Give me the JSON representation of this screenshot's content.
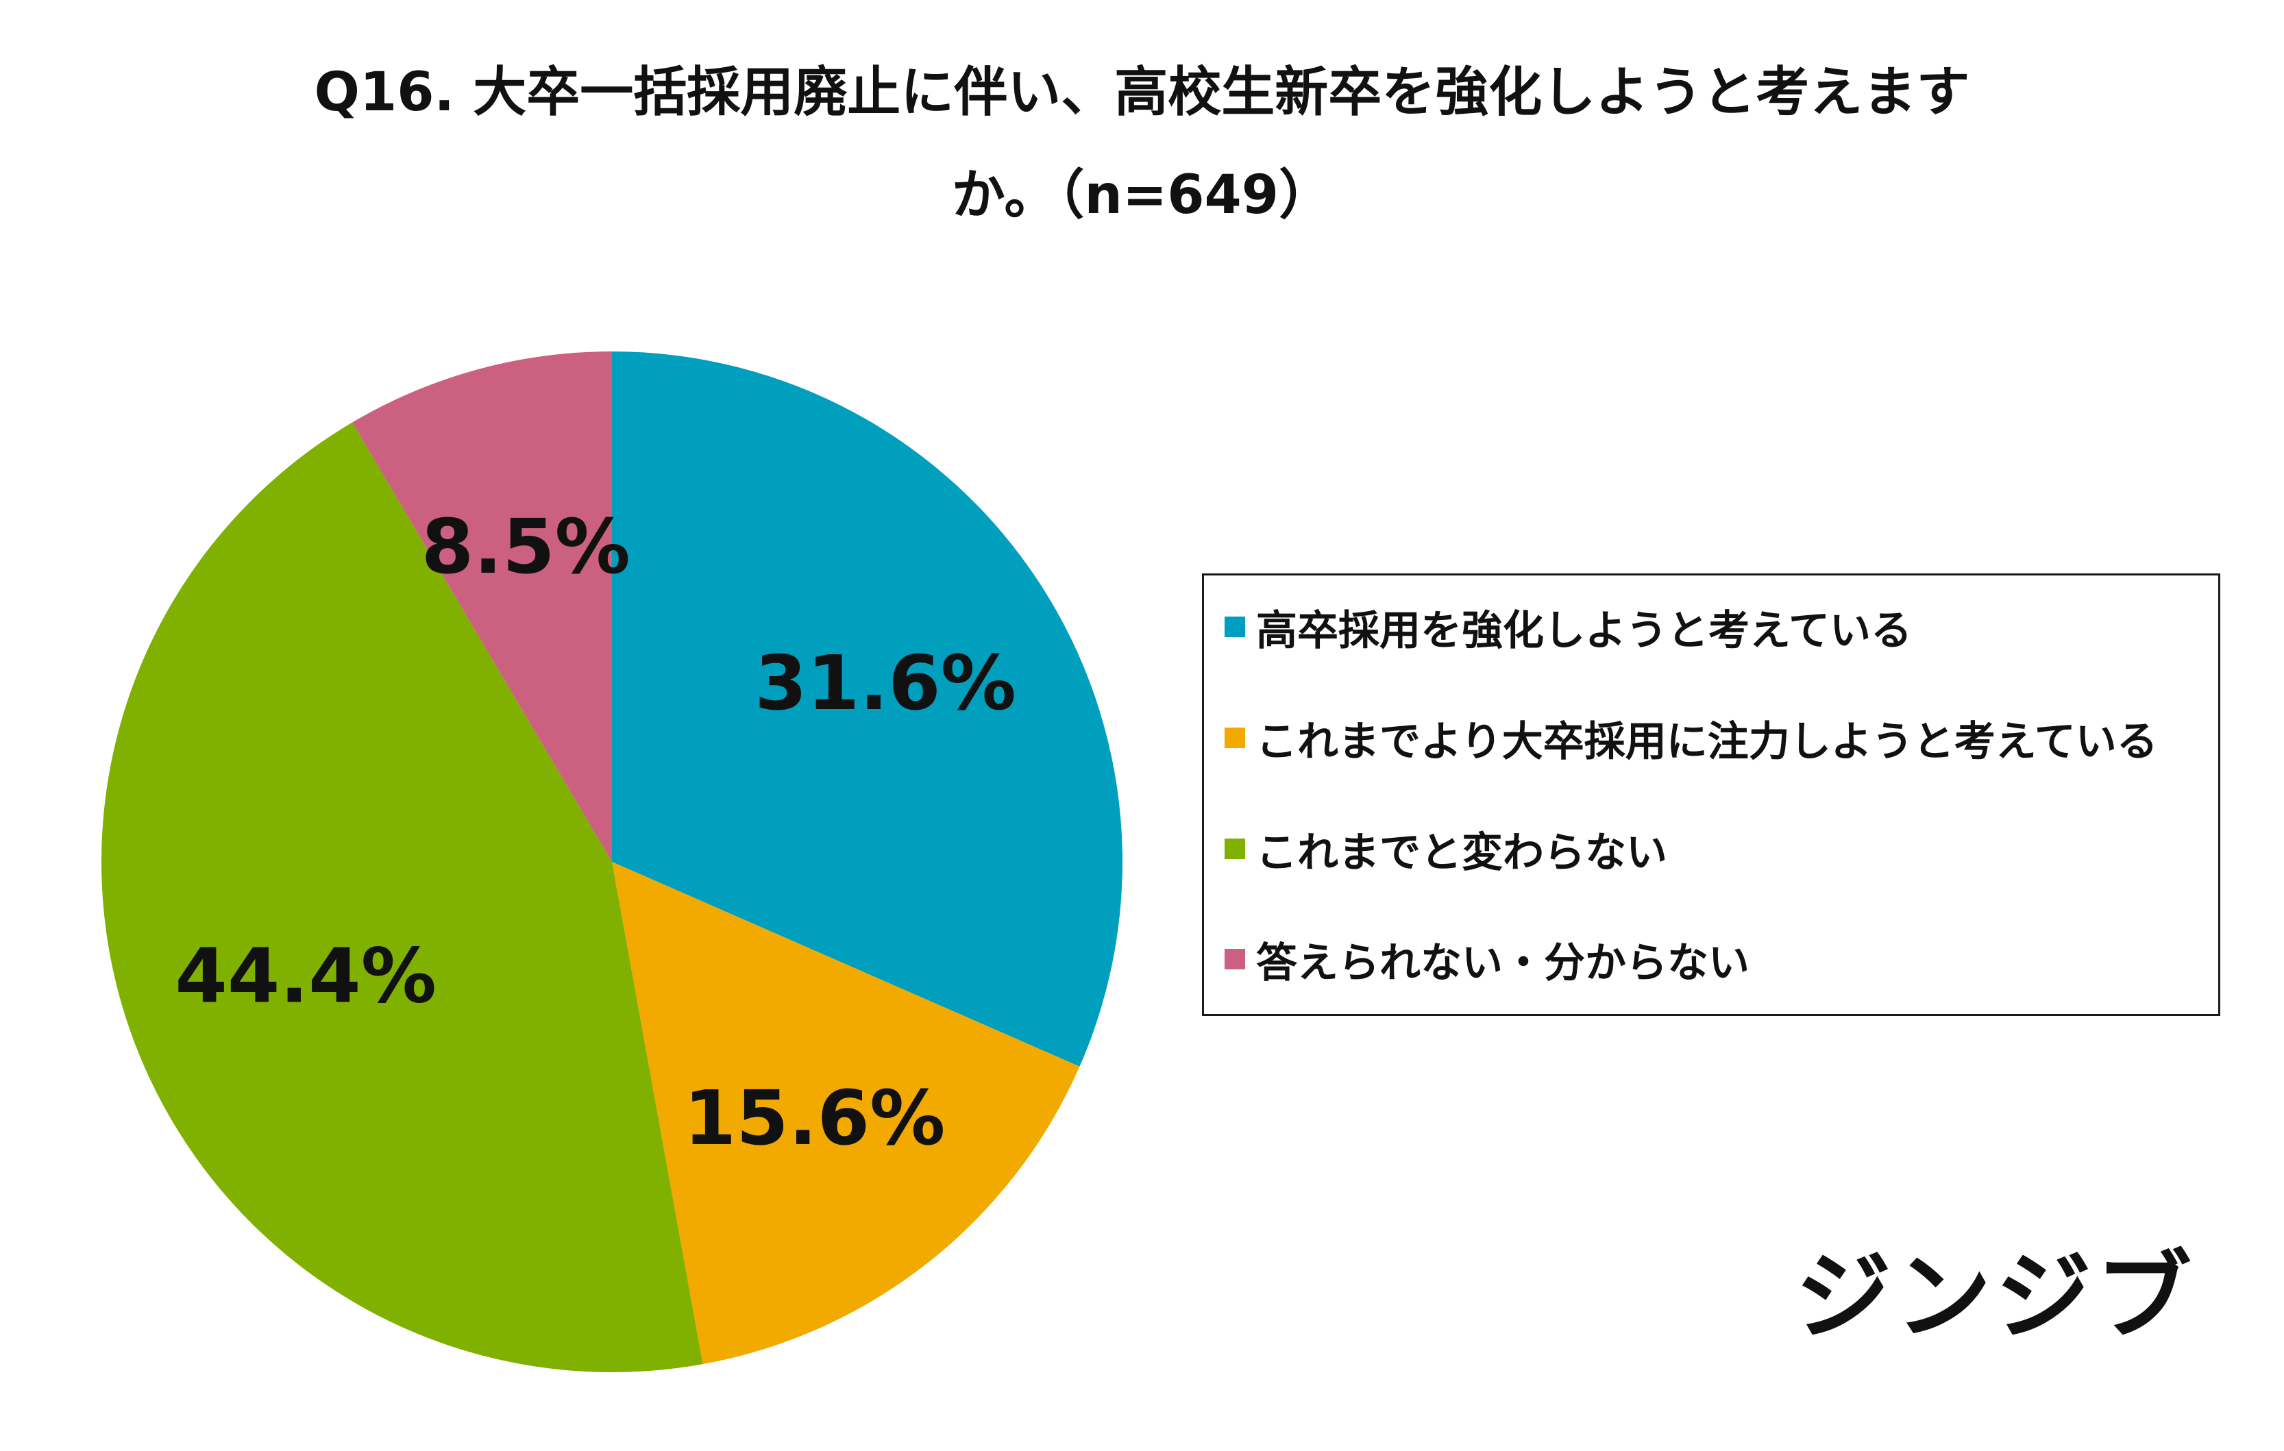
{
  "title": {
    "line1": "Q16. 大卒一括採用廃止に伴い、高校生新卒を強化しようと考えます",
    "line2": "か。（n=649）"
  },
  "chart_data": {
    "type": "pie",
    "start_angle_deg": 0,
    "direction": "clockwise",
    "slices": [
      {
        "label": "高卒採用を強化しようと考えている",
        "value": 31.6,
        "display": "31.6%",
        "color": "#009fbd"
      },
      {
        "label": "これまでより大卒採用に注力しようと考えている",
        "value": 15.6,
        "display": "15.6%",
        "color": "#f2a900"
      },
      {
        "label": "これまでと変わらない",
        "value": 44.4,
        "display": "44.4%",
        "color": "#80b000"
      },
      {
        "label": "答えられない・分からない",
        "value": 8.5,
        "display": "8.5%",
        "color": "#cc6080"
      }
    ],
    "legend": {
      "placement": "right"
    }
  },
  "legend": {
    "items": [
      {
        "label": "高卒採用を強化しようと考えている",
        "color": "#009fbd"
      },
      {
        "label": "これまでより大卒採用に注力しようと考えている",
        "color": "#f2a900"
      },
      {
        "label": "これまでと変わらない",
        "color": "#80b000"
      },
      {
        "label": "答えられない・分からない",
        "color": "#cc6080"
      }
    ]
  },
  "logo": {
    "text": "ジンジブ"
  }
}
